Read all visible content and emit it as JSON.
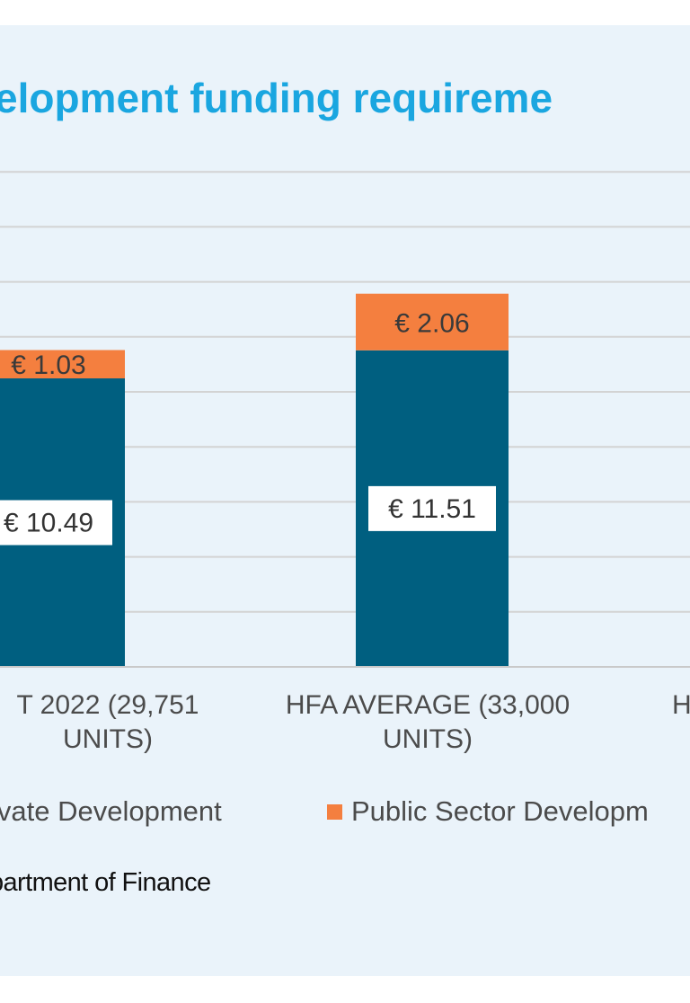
{
  "chart_data": {
    "type": "bar",
    "stacked": true,
    "title": "elopment funding requireme",
    "categories": [
      "T 2022 (29,751 UNITS)",
      "HFA AVERAGE (33,000 UNITS)",
      "H"
    ],
    "category_lines": [
      [
        "T 2022 (29,751",
        "UNITS)"
      ],
      [
        "HFA AVERAGE (33,000",
        "UNITS)"
      ],
      [
        "H"
      ]
    ],
    "series": [
      {
        "name": "ivate Development",
        "color": "#005f80",
        "values": [
          10.49,
          11.51,
          null
        ],
        "labels": [
          "€ 10.49",
          "€ 11.51",
          ""
        ]
      },
      {
        "name": "Public Sector Developm",
        "color": "#f47f3f",
        "values": [
          1.03,
          2.06,
          null
        ],
        "labels": [
          "€ 1.03",
          "€ 2.06",
          ""
        ]
      }
    ],
    "ylim": [
      0,
      18
    ],
    "grid": true,
    "legend_position": "bottom"
  },
  "source_text": "partment of Finance"
}
